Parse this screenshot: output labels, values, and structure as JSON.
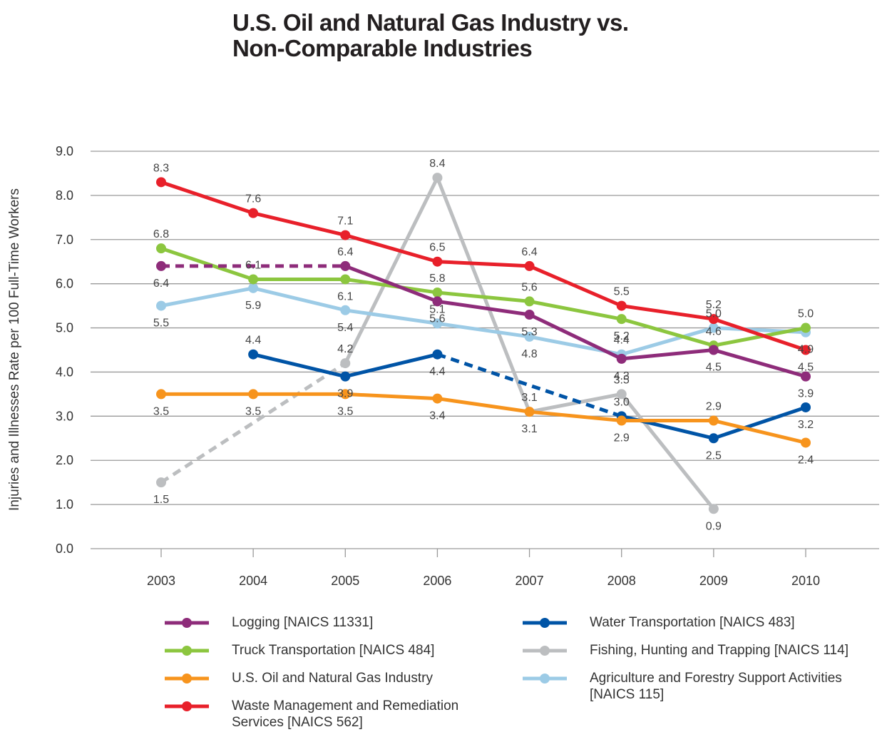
{
  "chart_data": {
    "type": "line",
    "title": "U.S. Oil and Natural Gas Industry vs. Non-Comparable Industries",
    "title_lines": [
      "U.S. Oil and Natural Gas Industry vs.",
      "Non-Comparable Industries"
    ],
    "xlabel": "",
    "ylabel": "Injuries and Illnesses Rate per 100 Full-Time Workers",
    "x": [
      "2003",
      "2004",
      "2005",
      "2006",
      "2007",
      "2008",
      "2009",
      "2010"
    ],
    "yticks": [
      "0.0",
      "1.0",
      "2.0",
      "3.0",
      "4.0",
      "5.0",
      "6.0",
      "7.0",
      "8.0",
      "9.0"
    ],
    "ylim": [
      0,
      9
    ],
    "grid": true,
    "legend_position": "bottom",
    "series": [
      {
        "name": "Logging [NAICS 11331]",
        "color": "#8e2c7a",
        "values": [
          6.4,
          null,
          6.4,
          5.6,
          5.3,
          4.3,
          4.5,
          3.9
        ],
        "labels": [
          "6.4",
          null,
          "6.4",
          "5.6",
          "5.3",
          "4.3",
          "4.5",
          "3.9"
        ],
        "dashed_segments": [
          [
            0,
            2
          ]
        ]
      },
      {
        "name": "Truck Transportation [NAICS 484]",
        "color": "#8cc63f",
        "values": [
          6.8,
          6.1,
          6.1,
          5.8,
          5.6,
          5.2,
          4.6,
          5.0
        ],
        "labels": [
          "6.8",
          "6.1",
          "6.1",
          "5.8",
          "5.6",
          "5.2",
          "4.6",
          "5.0"
        ],
        "dashed_segments": []
      },
      {
        "name": "U.S. Oil and Natural Gas Industry",
        "color": "#f7941d",
        "values": [
          3.5,
          3.5,
          3.5,
          3.4,
          3.1,
          2.9,
          2.9,
          2.4
        ],
        "labels": [
          "3.5",
          "3.5",
          "3.5",
          "3.4",
          "3.1",
          "2.9",
          "2.9",
          "2.4"
        ],
        "dashed_segments": []
      },
      {
        "name": "Waste Management and Remediation Services [NAICS 562]",
        "color": "#e8202a",
        "values": [
          8.3,
          7.6,
          7.1,
          6.5,
          6.4,
          5.5,
          5.2,
          4.5
        ],
        "labels": [
          "8.3",
          "7.6",
          "7.1",
          "6.5",
          "6.4",
          "5.5",
          "5.2",
          "4.5"
        ],
        "dashed_segments": []
      },
      {
        "name": "Water Transportation [NAICS 483]",
        "color": "#0054a6",
        "values": [
          null,
          4.4,
          3.9,
          4.4,
          null,
          3.0,
          2.5,
          3.2
        ],
        "labels": [
          null,
          "4.4",
          "3.9",
          "4.4",
          null,
          "3.0",
          "2.5",
          "3.2"
        ],
        "dashed_segments": [
          [
            3,
            5
          ]
        ]
      },
      {
        "name": "Fishing, Hunting and Trapping [NAICS 114]",
        "color": "#bcbec0",
        "values": [
          1.5,
          null,
          4.2,
          8.4,
          3.1,
          3.5,
          0.9,
          null
        ],
        "labels": [
          "1.5",
          null,
          "4.2",
          "8.4",
          "3.1",
          "3.5",
          "0.9",
          null
        ],
        "dashed_segments": [
          [
            0,
            2
          ]
        ]
      },
      {
        "name": "Agriculture and Forestry Support Activities [NAICS 115]",
        "color": "#9ccbe6",
        "values": [
          5.5,
          5.9,
          5.4,
          5.1,
          4.8,
          4.4,
          5.0,
          4.9
        ],
        "labels": [
          "5.5",
          "5.9",
          "5.4",
          "5.1",
          "4.8",
          "4.4",
          "5.0",
          "4.9"
        ],
        "dashed_segments": []
      }
    ]
  },
  "legend": {
    "left": [
      {
        "label_lines": [
          "Logging [NAICS 11331]"
        ],
        "series": 0
      },
      {
        "label_lines": [
          "Truck Transportation [NAICS 484]"
        ],
        "series": 1
      },
      {
        "label_lines": [
          "U.S. Oil and Natural Gas Industry"
        ],
        "series": 2
      },
      {
        "label_lines": [
          "Waste Management and Remediation",
          "Services [NAICS 562]"
        ],
        "series": 3
      }
    ],
    "right": [
      {
        "label_lines": [
          "Water Transportation [NAICS 483]"
        ],
        "series": 4
      },
      {
        "label_lines": [
          "Fishing, Hunting and Trapping [NAICS 114]"
        ],
        "series": 5
      },
      {
        "label_lines": [
          "Agriculture and Forestry Support Activities",
          "[NAICS 115]"
        ],
        "series": 6
      }
    ]
  }
}
